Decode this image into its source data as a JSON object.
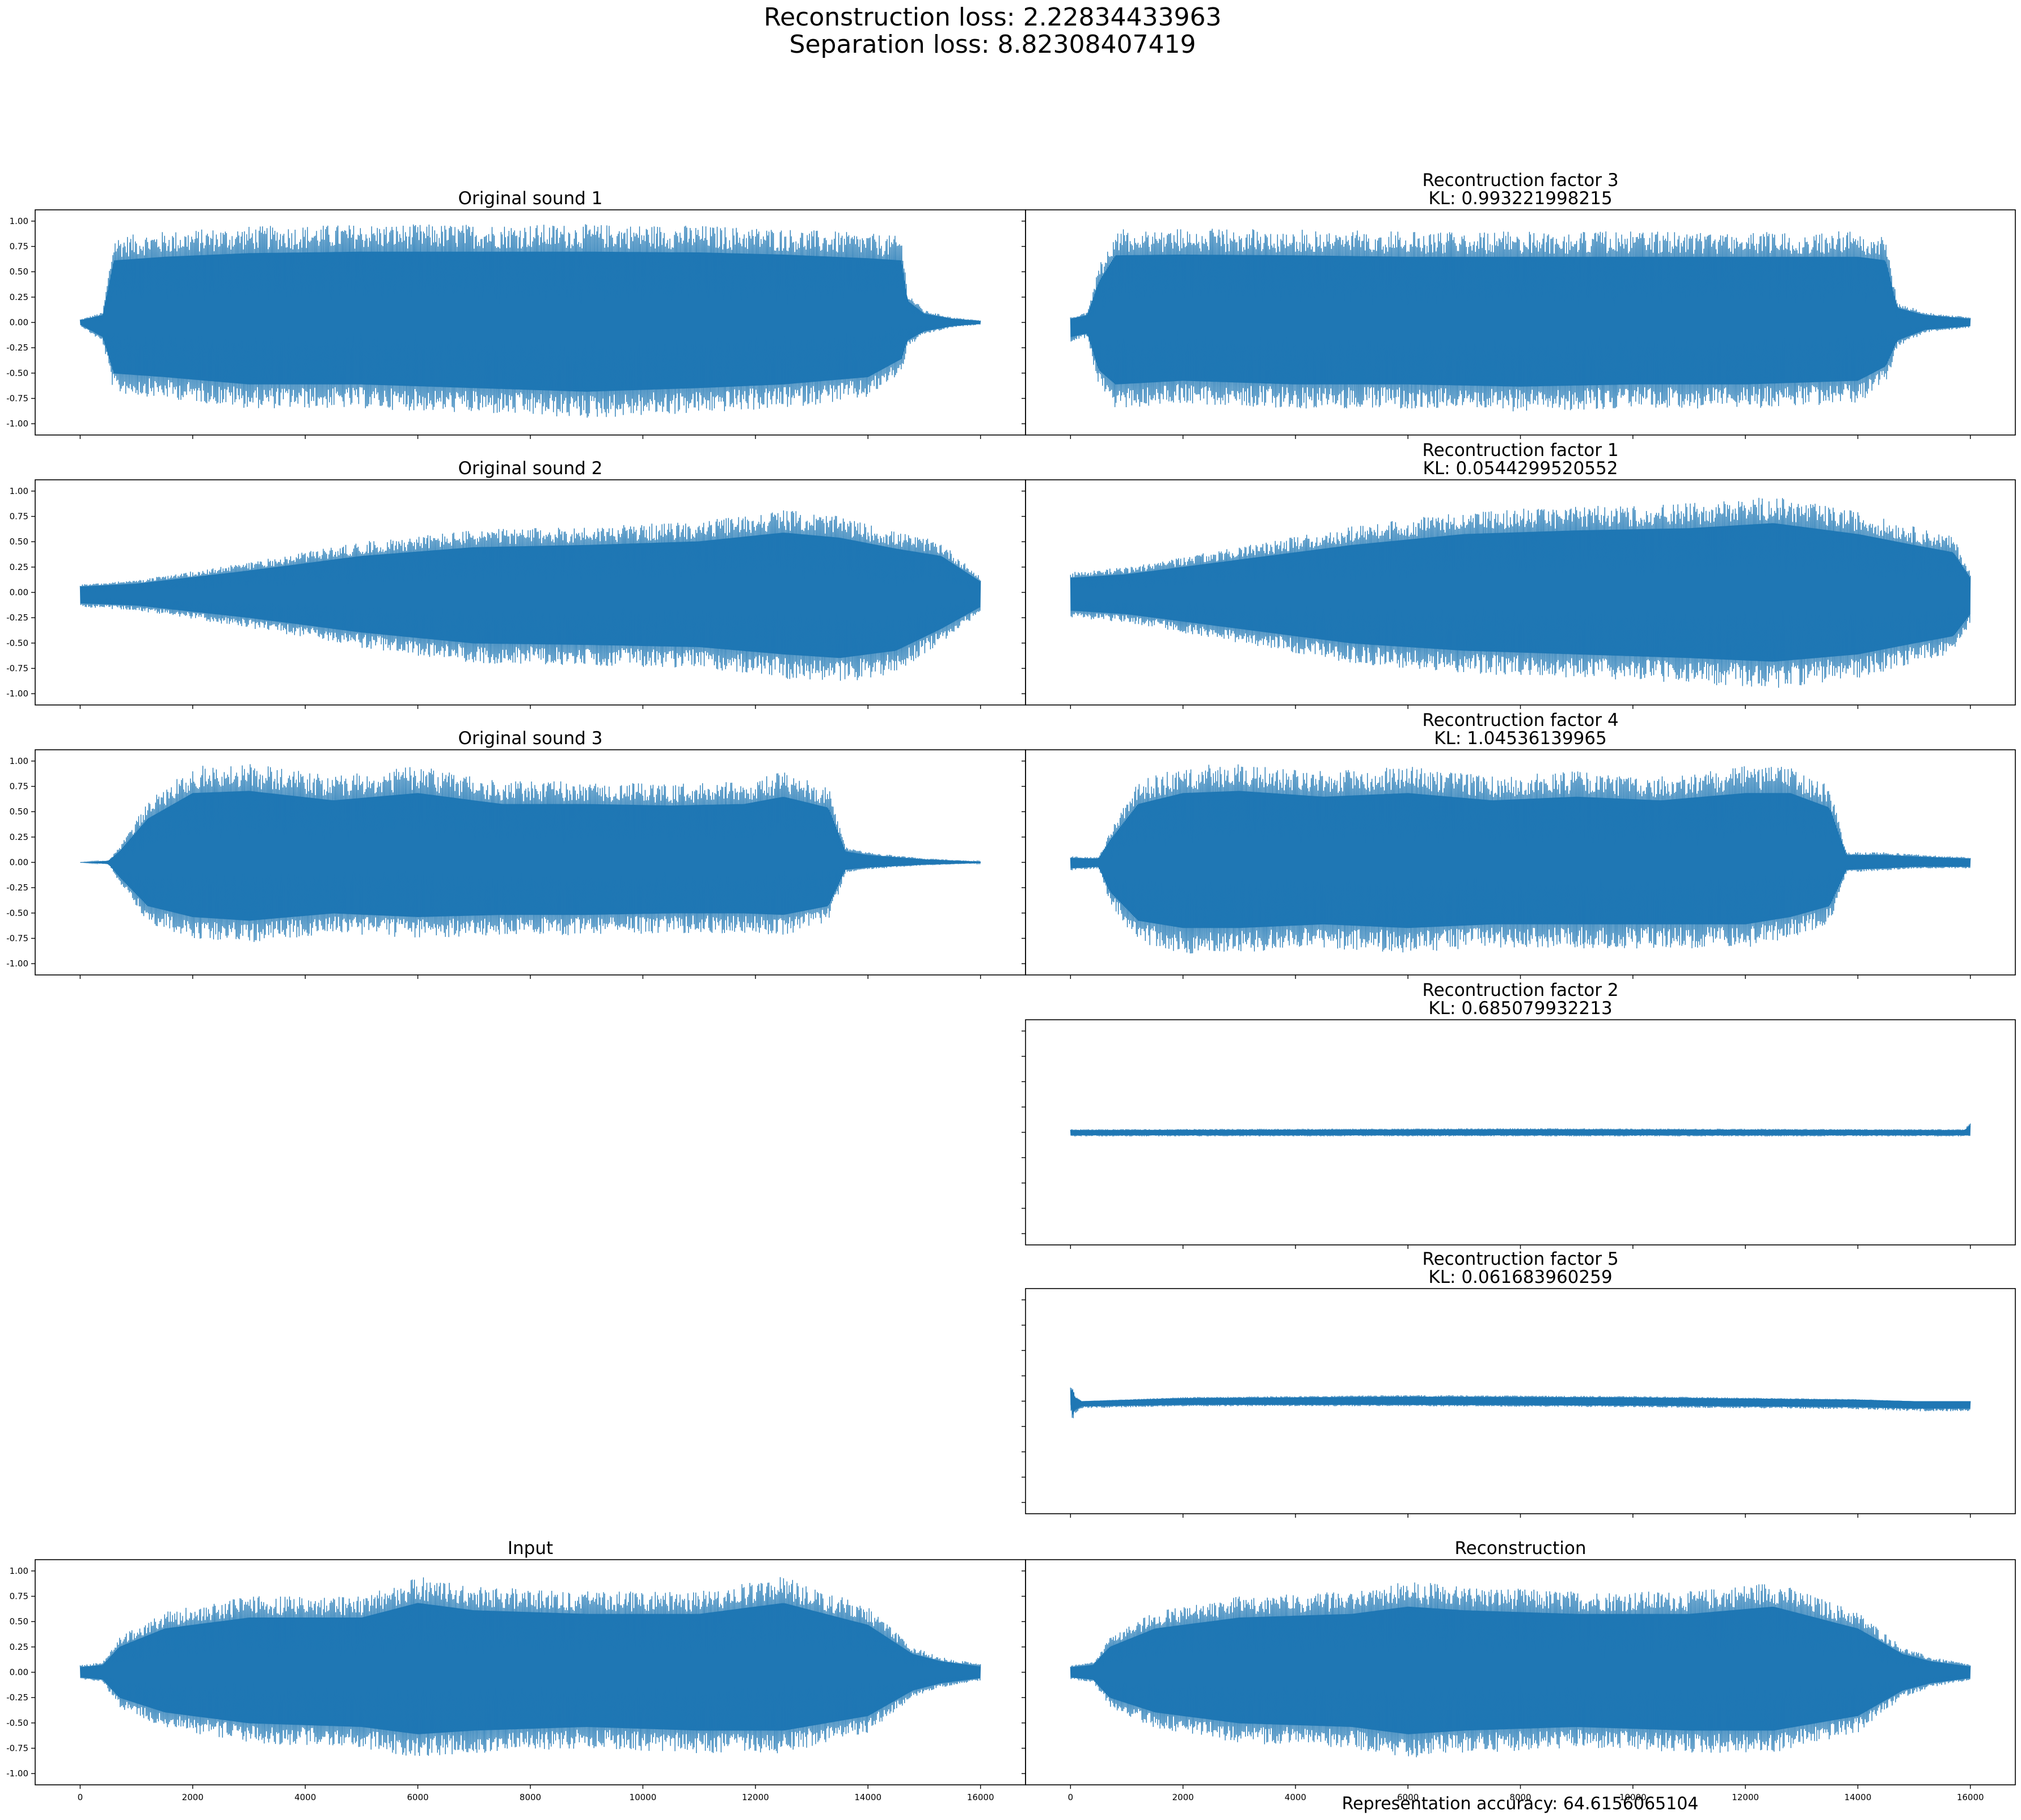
{
  "figure": {
    "title_lines": [
      "Reconstruction loss: 2.22834433963",
      "Separation loss: 8.82308407419"
    ],
    "footer": "Representation accuracy: 64.6156065104",
    "series_color": "#1f77b4"
  },
  "chart_data": [
    {
      "type": "line",
      "title_lines": [
        "Original sound 1"
      ],
      "xlim": [
        0,
        16000
      ],
      "ylim": [
        -1.0,
        1.0
      ],
      "yticks": [
        "1.00",
        "0.75",
        "0.50",
        "0.25",
        "0.00",
        "-0.25",
        "-0.50",
        "-0.75",
        "-1.00"
      ],
      "envelope": {
        "t": [
          0,
          400,
          600,
          1500,
          3000,
          5000,
          7000,
          9000,
          11000,
          12500,
          14000,
          14600,
          14700,
          15000,
          15500,
          16000
        ],
        "upper": [
          0.03,
          0.1,
          0.85,
          0.9,
          0.95,
          0.97,
          0.97,
          0.97,
          0.96,
          0.93,
          0.88,
          0.85,
          0.3,
          0.12,
          0.05,
          0.02
        ],
        "lower": [
          -0.03,
          -0.2,
          -0.7,
          -0.75,
          -0.85,
          -0.85,
          -0.9,
          -0.95,
          -0.9,
          -0.85,
          -0.75,
          -0.5,
          -0.25,
          -0.12,
          -0.05,
          -0.02
        ]
      }
    },
    {
      "type": "line",
      "title_lines": [
        "Recontruction factor 3",
        "KL: 0.993221998215"
      ],
      "xlim": [
        0,
        16000
      ],
      "ylim": [
        -1.0,
        1.0
      ],
      "yticks": [],
      "envelope": {
        "t": [
          0,
          300,
          500,
          800,
          2000,
          4000,
          6000,
          8000,
          10000,
          12000,
          14000,
          14500,
          14700,
          15200,
          16000
        ],
        "upper": [
          0.05,
          0.1,
          0.55,
          0.92,
          0.93,
          0.92,
          0.9,
          0.9,
          0.9,
          0.9,
          0.9,
          0.85,
          0.2,
          0.1,
          0.05
        ],
        "lower": [
          -0.2,
          -0.15,
          -0.65,
          -0.85,
          -0.8,
          -0.85,
          -0.85,
          -0.88,
          -0.85,
          -0.85,
          -0.8,
          -0.6,
          -0.25,
          -0.1,
          -0.05
        ]
      }
    },
    {
      "type": "line",
      "title_lines": [
        "Original sound 2"
      ],
      "xlim": [
        0,
        16000
      ],
      "ylim": [
        -1.0,
        1.0
      ],
      "yticks": [
        "1.00",
        "0.75",
        "0.50",
        "0.25",
        "0.00",
        "-0.25",
        "-0.50",
        "-0.75",
        "-1.00"
      ],
      "envelope": {
        "t": [
          0,
          1000,
          3000,
          5000,
          7000,
          9000,
          11000,
          12500,
          13500,
          14500,
          15300,
          16000
        ],
        "upper": [
          0.08,
          0.12,
          0.3,
          0.5,
          0.62,
          0.65,
          0.7,
          0.82,
          0.75,
          0.6,
          0.5,
          0.15
        ],
        "lower": [
          -0.15,
          -0.18,
          -0.35,
          -0.55,
          -0.7,
          -0.72,
          -0.75,
          -0.85,
          -0.9,
          -0.8,
          -0.5,
          -0.2
        ]
      }
    },
    {
      "type": "line",
      "title_lines": [
        "Recontruction factor 1",
        "KL: 0.0544299520552"
      ],
      "xlim": [
        0,
        16000
      ],
      "ylim": [
        -1.0,
        1.0
      ],
      "yticks": [],
      "envelope": {
        "t": [
          0,
          1000,
          3000,
          5000,
          7000,
          9000,
          11000,
          12500,
          14000,
          15000,
          15700,
          16000
        ],
        "upper": [
          0.2,
          0.25,
          0.45,
          0.65,
          0.8,
          0.85,
          0.88,
          0.95,
          0.8,
          0.65,
          0.55,
          0.2
        ],
        "lower": [
          -0.25,
          -0.3,
          -0.5,
          -0.7,
          -0.8,
          -0.85,
          -0.9,
          -0.95,
          -0.85,
          -0.7,
          -0.6,
          -0.3
        ]
      }
    },
    {
      "type": "line",
      "title_lines": [
        "Original sound 3"
      ],
      "xlim": [
        0,
        16000
      ],
      "ylim": [
        -1.0,
        1.0
      ],
      "yticks": [
        "1.00",
        "0.75",
        "0.50",
        "0.25",
        "0.00",
        "-0.25",
        "-0.50",
        "-0.75",
        "-1.00"
      ],
      "envelope": {
        "t": [
          0,
          500,
          700,
          1200,
          2000,
          3000,
          4500,
          6000,
          7500,
          9000,
          10500,
          11800,
          12500,
          13300,
          13600,
          14000,
          15000,
          16000
        ],
        "upper": [
          0.0,
          0.02,
          0.15,
          0.6,
          0.95,
          0.98,
          0.85,
          0.95,
          0.8,
          0.8,
          0.78,
          0.8,
          0.9,
          0.75,
          0.15,
          0.1,
          0.04,
          0.01
        ],
        "lower": [
          0.0,
          -0.02,
          -0.2,
          -0.6,
          -0.75,
          -0.8,
          -0.7,
          -0.75,
          -0.72,
          -0.72,
          -0.7,
          -0.7,
          -0.72,
          -0.6,
          -0.1,
          -0.07,
          -0.03,
          -0.01
        ]
      }
    },
    {
      "type": "line",
      "title_lines": [
        "Recontruction factor 4",
        "KL: 1.04536139965"
      ],
      "xlim": [
        0,
        16000
      ],
      "ylim": [
        -1.0,
        1.0
      ],
      "yticks": [],
      "envelope": {
        "t": [
          0,
          500,
          700,
          1200,
          2000,
          3000,
          4500,
          6000,
          7500,
          9000,
          10500,
          12000,
          12800,
          13500,
          13800,
          14500,
          15000,
          16000
        ],
        "upper": [
          0.06,
          0.05,
          0.3,
          0.8,
          0.95,
          0.98,
          0.9,
          0.95,
          0.85,
          0.9,
          0.85,
          0.95,
          0.95,
          0.75,
          0.1,
          0.1,
          0.08,
          0.05
        ],
        "lower": [
          -0.08,
          -0.06,
          -0.4,
          -0.8,
          -0.9,
          -0.9,
          -0.85,
          -0.9,
          -0.85,
          -0.85,
          -0.85,
          -0.85,
          -0.75,
          -0.6,
          -0.1,
          -0.08,
          -0.06,
          -0.06
        ]
      }
    },
    {
      "type": "line",
      "title_lines": [
        "Recontruction factor 2",
        "KL: 0.685079932213"
      ],
      "xlim": [
        0,
        16000
      ],
      "ylim": [
        -1.0,
        1.0
      ],
      "yticks": [],
      "envelope": {
        "t": [
          0,
          8000,
          15900,
          16000
        ],
        "upper": [
          0.03,
          0.04,
          0.03,
          0.1
        ],
        "lower": [
          -0.04,
          -0.04,
          -0.04,
          -0.04
        ]
      }
    },
    {
      "type": "line",
      "title_lines": [
        "Recontruction factor 5",
        "KL: 0.061683960259"
      ],
      "xlim": [
        0,
        16000
      ],
      "ylim": [
        -1.0,
        1.0
      ],
      "yticks": [],
      "envelope": {
        "t": [
          0,
          30,
          80,
          200,
          2000,
          6000,
          10000,
          14000,
          15000,
          16000
        ],
        "upper": [
          0.15,
          0.18,
          0.05,
          0.0,
          0.04,
          0.06,
          0.05,
          0.02,
          0.0,
          0.0
        ],
        "lower": [
          -0.05,
          -0.2,
          -0.12,
          -0.07,
          -0.05,
          -0.05,
          -0.06,
          -0.08,
          -0.1,
          -0.1
        ]
      }
    },
    {
      "type": "line",
      "title_lines": [
        "Input"
      ],
      "xlim": [
        0,
        16000
      ],
      "ylim": [
        -1.0,
        1.0
      ],
      "yticks": [
        "1.00",
        "0.75",
        "0.50",
        "0.25",
        "0.00",
        "-0.25",
        "-0.50",
        "-0.75",
        "-1.00"
      ],
      "xticks": [
        "0",
        "2000",
        "4000",
        "6000",
        "8000",
        "10000",
        "12000",
        "14000",
        "16000"
      ],
      "envelope": {
        "t": [
          0,
          400,
          700,
          1500,
          3000,
          5000,
          6000,
          7000,
          9000,
          11000,
          12500,
          14000,
          14800,
          15300,
          16000
        ],
        "upper": [
          0.07,
          0.1,
          0.35,
          0.6,
          0.75,
          0.75,
          0.95,
          0.85,
          0.8,
          0.8,
          0.95,
          0.65,
          0.25,
          0.15,
          0.08
        ],
        "lower": [
          -0.07,
          -0.1,
          -0.35,
          -0.55,
          -0.7,
          -0.75,
          -0.85,
          -0.8,
          -0.75,
          -0.8,
          -0.8,
          -0.6,
          -0.25,
          -0.15,
          -0.08
        ]
      }
    },
    {
      "type": "line",
      "title_lines": [
        "Reconstruction"
      ],
      "xlim": [
        0,
        16000
      ],
      "ylim": [
        -1.0,
        1.0
      ],
      "yticks": [],
      "xticks": [
        "0",
        "2000",
        "4000",
        "6000",
        "8000",
        "10000",
        "12000",
        "14000",
        "16000"
      ],
      "envelope": {
        "t": [
          0,
          400,
          700,
          1500,
          3000,
          5000,
          6000,
          7000,
          9000,
          11000,
          12500,
          14000,
          14800,
          15300,
          16000
        ],
        "upper": [
          0.07,
          0.1,
          0.35,
          0.6,
          0.75,
          0.8,
          0.9,
          0.85,
          0.8,
          0.8,
          0.9,
          0.6,
          0.25,
          0.15,
          0.08
        ],
        "lower": [
          -0.07,
          -0.1,
          -0.35,
          -0.55,
          -0.7,
          -0.75,
          -0.85,
          -0.8,
          -0.75,
          -0.8,
          -0.8,
          -0.6,
          -0.25,
          -0.15,
          -0.08
        ]
      }
    }
  ]
}
